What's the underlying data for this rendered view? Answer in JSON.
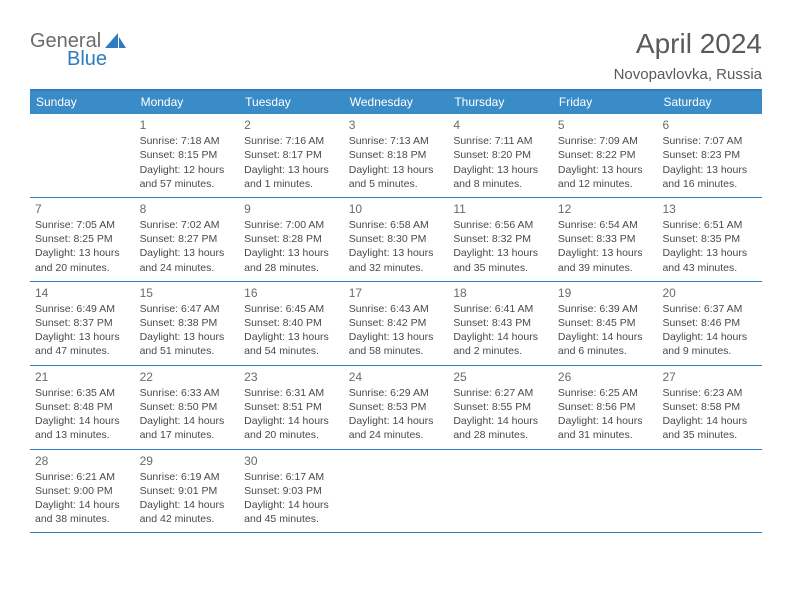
{
  "logo": {
    "part1": "General",
    "part2": "Blue"
  },
  "title": "April 2024",
  "location": "Novopavlovka, Russia",
  "colors": {
    "header_bg": "#3a8cc9",
    "border": "#2f7bbf",
    "text": "#4a4a4a",
    "title": "#5a5a5a",
    "daynum": "#6a6a6a"
  },
  "day_names": [
    "Sunday",
    "Monday",
    "Tuesday",
    "Wednesday",
    "Thursday",
    "Friday",
    "Saturday"
  ],
  "weeks": [
    [
      null,
      {
        "d": "1",
        "sr": "Sunrise: 7:18 AM",
        "ss": "Sunset: 8:15 PM",
        "dl": "Daylight: 12 hours and 57 minutes."
      },
      {
        "d": "2",
        "sr": "Sunrise: 7:16 AM",
        "ss": "Sunset: 8:17 PM",
        "dl": "Daylight: 13 hours and 1 minutes."
      },
      {
        "d": "3",
        "sr": "Sunrise: 7:13 AM",
        "ss": "Sunset: 8:18 PM",
        "dl": "Daylight: 13 hours and 5 minutes."
      },
      {
        "d": "4",
        "sr": "Sunrise: 7:11 AM",
        "ss": "Sunset: 8:20 PM",
        "dl": "Daylight: 13 hours and 8 minutes."
      },
      {
        "d": "5",
        "sr": "Sunrise: 7:09 AM",
        "ss": "Sunset: 8:22 PM",
        "dl": "Daylight: 13 hours and 12 minutes."
      },
      {
        "d": "6",
        "sr": "Sunrise: 7:07 AM",
        "ss": "Sunset: 8:23 PM",
        "dl": "Daylight: 13 hours and 16 minutes."
      }
    ],
    [
      {
        "d": "7",
        "sr": "Sunrise: 7:05 AM",
        "ss": "Sunset: 8:25 PM",
        "dl": "Daylight: 13 hours and 20 minutes."
      },
      {
        "d": "8",
        "sr": "Sunrise: 7:02 AM",
        "ss": "Sunset: 8:27 PM",
        "dl": "Daylight: 13 hours and 24 minutes."
      },
      {
        "d": "9",
        "sr": "Sunrise: 7:00 AM",
        "ss": "Sunset: 8:28 PM",
        "dl": "Daylight: 13 hours and 28 minutes."
      },
      {
        "d": "10",
        "sr": "Sunrise: 6:58 AM",
        "ss": "Sunset: 8:30 PM",
        "dl": "Daylight: 13 hours and 32 minutes."
      },
      {
        "d": "11",
        "sr": "Sunrise: 6:56 AM",
        "ss": "Sunset: 8:32 PM",
        "dl": "Daylight: 13 hours and 35 minutes."
      },
      {
        "d": "12",
        "sr": "Sunrise: 6:54 AM",
        "ss": "Sunset: 8:33 PM",
        "dl": "Daylight: 13 hours and 39 minutes."
      },
      {
        "d": "13",
        "sr": "Sunrise: 6:51 AM",
        "ss": "Sunset: 8:35 PM",
        "dl": "Daylight: 13 hours and 43 minutes."
      }
    ],
    [
      {
        "d": "14",
        "sr": "Sunrise: 6:49 AM",
        "ss": "Sunset: 8:37 PM",
        "dl": "Daylight: 13 hours and 47 minutes."
      },
      {
        "d": "15",
        "sr": "Sunrise: 6:47 AM",
        "ss": "Sunset: 8:38 PM",
        "dl": "Daylight: 13 hours and 51 minutes."
      },
      {
        "d": "16",
        "sr": "Sunrise: 6:45 AM",
        "ss": "Sunset: 8:40 PM",
        "dl": "Daylight: 13 hours and 54 minutes."
      },
      {
        "d": "17",
        "sr": "Sunrise: 6:43 AM",
        "ss": "Sunset: 8:42 PM",
        "dl": "Daylight: 13 hours and 58 minutes."
      },
      {
        "d": "18",
        "sr": "Sunrise: 6:41 AM",
        "ss": "Sunset: 8:43 PM",
        "dl": "Daylight: 14 hours and 2 minutes."
      },
      {
        "d": "19",
        "sr": "Sunrise: 6:39 AM",
        "ss": "Sunset: 8:45 PM",
        "dl": "Daylight: 14 hours and 6 minutes."
      },
      {
        "d": "20",
        "sr": "Sunrise: 6:37 AM",
        "ss": "Sunset: 8:46 PM",
        "dl": "Daylight: 14 hours and 9 minutes."
      }
    ],
    [
      {
        "d": "21",
        "sr": "Sunrise: 6:35 AM",
        "ss": "Sunset: 8:48 PM",
        "dl": "Daylight: 14 hours and 13 minutes."
      },
      {
        "d": "22",
        "sr": "Sunrise: 6:33 AM",
        "ss": "Sunset: 8:50 PM",
        "dl": "Daylight: 14 hours and 17 minutes."
      },
      {
        "d": "23",
        "sr": "Sunrise: 6:31 AM",
        "ss": "Sunset: 8:51 PM",
        "dl": "Daylight: 14 hours and 20 minutes."
      },
      {
        "d": "24",
        "sr": "Sunrise: 6:29 AM",
        "ss": "Sunset: 8:53 PM",
        "dl": "Daylight: 14 hours and 24 minutes."
      },
      {
        "d": "25",
        "sr": "Sunrise: 6:27 AM",
        "ss": "Sunset: 8:55 PM",
        "dl": "Daylight: 14 hours and 28 minutes."
      },
      {
        "d": "26",
        "sr": "Sunrise: 6:25 AM",
        "ss": "Sunset: 8:56 PM",
        "dl": "Daylight: 14 hours and 31 minutes."
      },
      {
        "d": "27",
        "sr": "Sunrise: 6:23 AM",
        "ss": "Sunset: 8:58 PM",
        "dl": "Daylight: 14 hours and 35 minutes."
      }
    ],
    [
      {
        "d": "28",
        "sr": "Sunrise: 6:21 AM",
        "ss": "Sunset: 9:00 PM",
        "dl": "Daylight: 14 hours and 38 minutes."
      },
      {
        "d": "29",
        "sr": "Sunrise: 6:19 AM",
        "ss": "Sunset: 9:01 PM",
        "dl": "Daylight: 14 hours and 42 minutes."
      },
      {
        "d": "30",
        "sr": "Sunrise: 6:17 AM",
        "ss": "Sunset: 9:03 PM",
        "dl": "Daylight: 14 hours and 45 minutes."
      },
      null,
      null,
      null,
      null
    ]
  ]
}
